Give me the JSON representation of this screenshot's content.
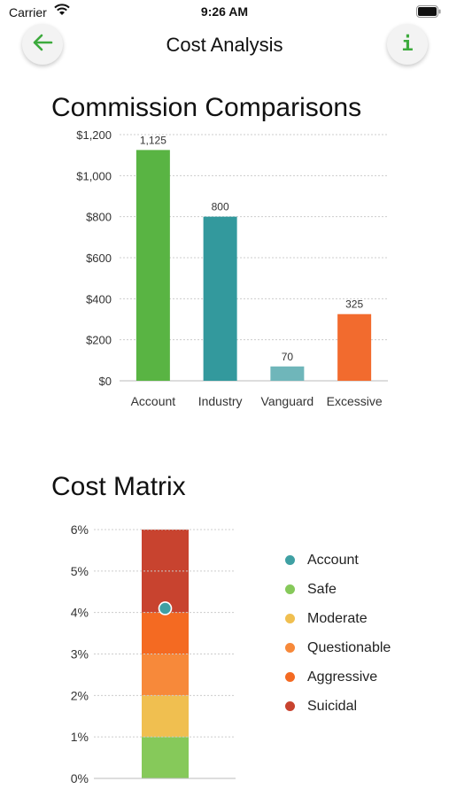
{
  "status_bar": {
    "carrier": "Carrier",
    "time": "9:26 AM"
  },
  "nav": {
    "title": "Cost Analysis",
    "back_icon": "arrow-left-icon",
    "info_label": "i"
  },
  "colors": {
    "accent": "#3caa3c",
    "account": "#3fa0a3",
    "industry": "#33999d",
    "vanguard": "#6fb6ba",
    "excessive": "#f26b2e",
    "account_bar": "#59b443",
    "safe": "#86c95a",
    "moderate": "#f0bf50",
    "questionable": "#f7893a",
    "aggressive": "#f46a22",
    "suicidal": "#c8432f"
  },
  "commission": {
    "title": "Commission Comparisons",
    "chart_data": {
      "type": "bar",
      "title": "Commission Comparisons",
      "categories": [
        "Account",
        "Industry",
        "Vanguard",
        "Excessive"
      ],
      "values": [
        1125,
        800,
        70,
        325
      ],
      "value_labels": [
        "1,125",
        "800",
        "70",
        "325"
      ],
      "bar_colors": [
        "#59b443",
        "#33999d",
        "#6fb6ba",
        "#f26b2e"
      ],
      "yticks": [
        0,
        200,
        400,
        600,
        800,
        1000,
        1200
      ],
      "ytick_labels": [
        "$0",
        "$200",
        "$400",
        "$600",
        "$800",
        "$1,000",
        "$1,200"
      ],
      "ylim": [
        0,
        1200
      ],
      "grid": true
    }
  },
  "matrix": {
    "title": "Cost Matrix",
    "chart_data": {
      "type": "bar",
      "title": "Cost Matrix",
      "ylim": [
        0,
        6
      ],
      "yticks": [
        0,
        1,
        2,
        3,
        4,
        5,
        6
      ],
      "ytick_labels": [
        "0%",
        "1%",
        "2%",
        "3%",
        "4%",
        "5%",
        "6%"
      ],
      "bands": [
        {
          "name": "Safe",
          "from": 0,
          "to": 1,
          "color": "#86c95a"
        },
        {
          "name": "Moderate",
          "from": 1,
          "to": 2,
          "color": "#f0bf50"
        },
        {
          "name": "Questionable",
          "from": 2,
          "to": 3,
          "color": "#f7893a"
        },
        {
          "name": "Aggressive",
          "from": 3,
          "to": 4,
          "color": "#f46a22"
        },
        {
          "name": "Suicidal",
          "from": 4,
          "to": 6,
          "color": "#c8432f"
        }
      ],
      "marker": {
        "name": "Account",
        "value": 4.1,
        "color": "#3fa0a3"
      },
      "grid": true,
      "legend_position": "right"
    },
    "legend": [
      {
        "label": "Account",
        "color": "#3fa0a3"
      },
      {
        "label": "Safe",
        "color": "#86c95a"
      },
      {
        "label": "Moderate",
        "color": "#f0bf50"
      },
      {
        "label": "Questionable",
        "color": "#f7893a"
      },
      {
        "label": "Aggressive",
        "color": "#f46a22"
      },
      {
        "label": "Suicidal",
        "color": "#c8432f"
      }
    ]
  }
}
